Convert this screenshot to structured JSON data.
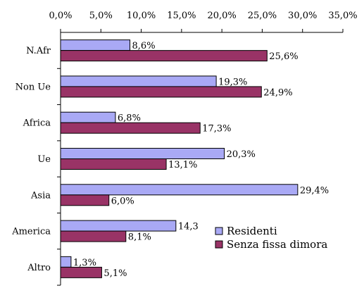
{
  "chart_data": {
    "type": "bar",
    "orientation": "horizontal",
    "categories": [
      "N.Afr",
      "Non Ue",
      "Africa",
      "Ue",
      "Asia",
      "America",
      "Altro"
    ],
    "series": [
      {
        "name": "Residenti",
        "values": [
          8.6,
          19.3,
          6.8,
          20.3,
          29.4,
          14.3,
          1.3
        ],
        "labels": [
          "8,6%",
          "19,3%",
          "6,8%",
          "20,3%",
          "29,4%",
          "14,3",
          "1,3%"
        ],
        "color": "#a9a9f5"
      },
      {
        "name": "Senza fissa dimora",
        "values": [
          25.6,
          24.9,
          17.3,
          13.1,
          6.0,
          8.1,
          5.1
        ],
        "labels": [
          "25,6%",
          "24,9%",
          "17,3%",
          "13,1%",
          "6,0%",
          "8,1%",
          "5,1%"
        ],
        "color": "#993366"
      }
    ],
    "xlim": [
      0,
      35
    ],
    "x_ticks": [
      0,
      5,
      10,
      15,
      20,
      25,
      30,
      35
    ],
    "x_tick_labels": [
      "0,0%",
      "5,0%",
      "10,0%",
      "15,0%",
      "20,0%",
      "25,0%",
      "30,0%",
      "35,0%"
    ],
    "x_axis_position": "top",
    "grid": false,
    "legend_position": "bottom-right"
  }
}
